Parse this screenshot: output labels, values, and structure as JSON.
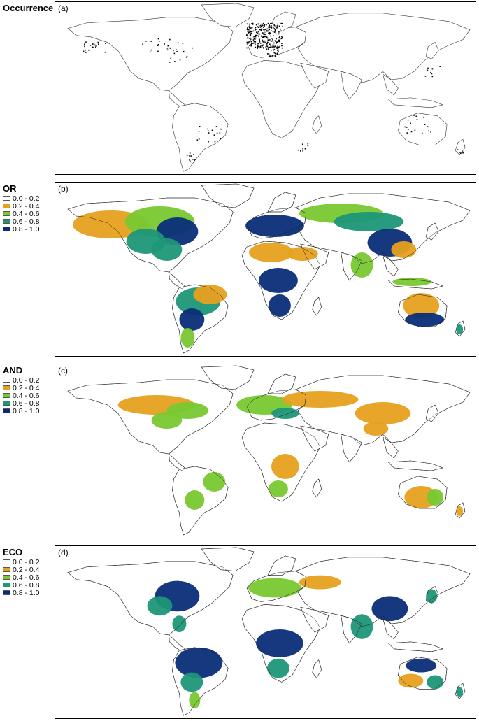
{
  "panels": [
    {
      "title": "Occurrence",
      "label": "(a)",
      "kind": "occurrence"
    },
    {
      "title": "OR",
      "label": "(b)",
      "kind": "or"
    },
    {
      "title": "AND",
      "label": "(c)",
      "kind": "and"
    },
    {
      "title": "ECO",
      "label": "(d)",
      "kind": "eco"
    }
  ],
  "legend": [
    {
      "range": "0.0 - 0.2",
      "color": "#ffffff"
    },
    {
      "range": "0.2 - 0.4",
      "color": "#e6a01e"
    },
    {
      "range": "0.4 - 0.6",
      "color": "#78c832"
    },
    {
      "range": "0.6 - 0.8",
      "color": "#1e9678"
    },
    {
      "range": "0.8 - 1.0",
      "color": "#0a2d78"
    }
  ],
  "colors": {
    "land_outline": "#000000",
    "land_fill": "#ffffff",
    "occurrence": "#000000"
  }
}
